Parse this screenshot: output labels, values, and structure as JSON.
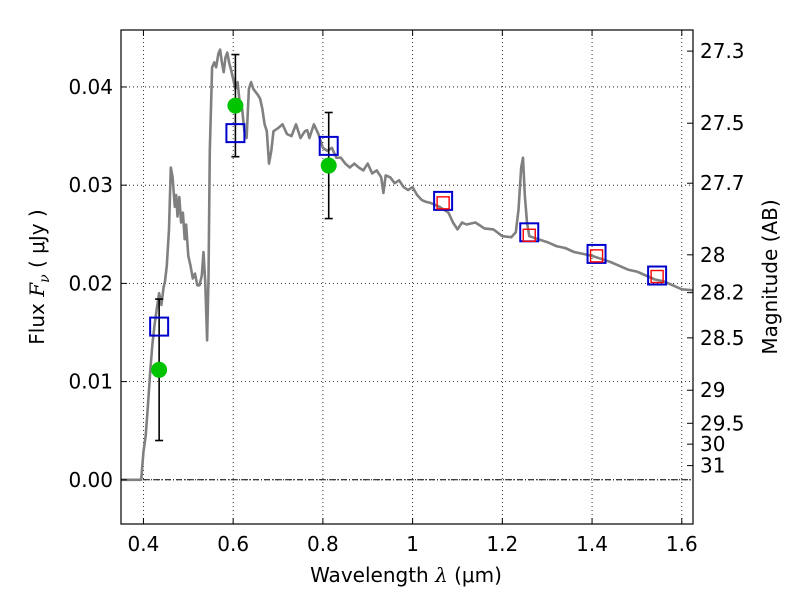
{
  "chart_data": {
    "type": "scatter",
    "xlabel": {
      "prefix": "Wavelength ",
      "symbol": "λ",
      "unit": " (μm)"
    },
    "ylabel": {
      "prefix": "Flux ",
      "symbol": "F",
      "subscript": "ν",
      "unit": " ( μJy )"
    },
    "ylabel_right": "Magnitude (AB)",
    "xlim": [
      0.35,
      1.625
    ],
    "ylim": [
      -0.0045,
      0.0458
    ],
    "xticks": [
      0.4,
      0.6,
      0.8,
      1.0,
      1.2,
      1.4,
      1.6
    ],
    "xtick_labels": [
      "0.4",
      "0.6",
      "0.8",
      "1",
      "1.2",
      "1.4",
      "1.6"
    ],
    "yticks": [
      0.0,
      0.01,
      0.02,
      0.03,
      0.04
    ],
    "ytick_labels": [
      "0.00",
      "0.01",
      "0.02",
      "0.03",
      "0.04"
    ],
    "right_ticks": [
      {
        "label": "27.3",
        "mag": 27.3
      },
      {
        "label": "27.5",
        "mag": 27.5
      },
      {
        "label": "27.7",
        "mag": 27.7
      },
      {
        "label": "28",
        "mag": 28.0
      },
      {
        "label": "28.2",
        "mag": 28.2
      },
      {
        "label": "28.5",
        "mag": 28.5
      },
      {
        "label": "29",
        "mag": 29.0
      },
      {
        "label": "29.5",
        "mag": 29.5
      },
      {
        "label": "30",
        "mag": 30.0
      },
      {
        "label": "31",
        "mag": 31.0
      }
    ],
    "grid": true,
    "zero_line": true,
    "colors": {
      "sed": "#808080",
      "observed": "#00c400",
      "model_box": "#0000cc",
      "red_box": "#ff0000",
      "errorbar": "#000000"
    },
    "series": [
      {
        "kind": "line",
        "points": [
          [
            0.35,
            0.0
          ],
          [
            0.395,
            0.0
          ],
          [
            0.4,
            0.0028
          ],
          [
            0.405,
            0.0045
          ],
          [
            0.41,
            0.0075
          ],
          [
            0.415,
            0.011
          ],
          [
            0.42,
            0.0138
          ],
          [
            0.425,
            0.0158
          ],
          [
            0.43,
            0.0175
          ],
          [
            0.435,
            0.019
          ],
          [
            0.44,
            0.0178
          ],
          [
            0.445,
            0.0196
          ],
          [
            0.448,
            0.0202
          ],
          [
            0.452,
            0.0218
          ],
          [
            0.457,
            0.0255
          ],
          [
            0.461,
            0.0318
          ],
          [
            0.465,
            0.0308
          ],
          [
            0.47,
            0.0278
          ],
          [
            0.473,
            0.029
          ],
          [
            0.476,
            0.0268
          ],
          [
            0.48,
            0.0288
          ],
          [
            0.484,
            0.0262
          ],
          [
            0.488,
            0.0272
          ],
          [
            0.492,
            0.0245
          ],
          [
            0.495,
            0.026
          ],
          [
            0.5,
            0.0228
          ],
          [
            0.505,
            0.0218
          ],
          [
            0.51,
            0.0205
          ],
          [
            0.515,
            0.021
          ],
          [
            0.52,
            0.0198
          ],
          [
            0.525,
            0.0198
          ],
          [
            0.53,
            0.0208
          ],
          [
            0.534,
            0.0232
          ],
          [
            0.538,
            0.02
          ],
          [
            0.542,
            0.0142
          ],
          [
            0.545,
            0.0205
          ],
          [
            0.548,
            0.0335
          ],
          [
            0.553,
            0.042
          ],
          [
            0.558,
            0.0425
          ],
          [
            0.562,
            0.042
          ],
          [
            0.567,
            0.0434
          ],
          [
            0.571,
            0.0438
          ],
          [
            0.575,
            0.0425
          ],
          [
            0.579,
            0.0415
          ],
          [
            0.583,
            0.043
          ],
          [
            0.587,
            0.0435
          ],
          [
            0.591,
            0.0425
          ],
          [
            0.595,
            0.0418
          ],
          [
            0.6,
            0.0408
          ],
          [
            0.605,
            0.0398
          ],
          [
            0.61,
            0.0405
          ],
          [
            0.615,
            0.0382
          ],
          [
            0.62,
            0.0378
          ],
          [
            0.625,
            0.0355
          ],
          [
            0.63,
            0.0348
          ],
          [
            0.635,
            0.0398
          ],
          [
            0.64,
            0.0405
          ],
          [
            0.645,
            0.0398
          ],
          [
            0.65,
            0.0395
          ],
          [
            0.655,
            0.0392
          ],
          [
            0.66,
            0.0388
          ],
          [
            0.665,
            0.0378
          ],
          [
            0.67,
            0.0362
          ],
          [
            0.675,
            0.0355
          ],
          [
            0.68,
            0.0322
          ],
          [
            0.685,
            0.0335
          ],
          [
            0.69,
            0.0355
          ],
          [
            0.7,
            0.0358
          ],
          [
            0.71,
            0.0362
          ],
          [
            0.72,
            0.0352
          ],
          [
            0.73,
            0.035
          ],
          [
            0.74,
            0.0362
          ],
          [
            0.75,
            0.0348
          ],
          [
            0.76,
            0.0355
          ],
          [
            0.765,
            0.0356
          ],
          [
            0.77,
            0.0348
          ],
          [
            0.78,
            0.0362
          ],
          [
            0.79,
            0.0352
          ],
          [
            0.8,
            0.0338
          ],
          [
            0.81,
            0.0335
          ],
          [
            0.82,
            0.0338
          ],
          [
            0.83,
            0.0328
          ],
          [
            0.84,
            0.0328
          ],
          [
            0.85,
            0.0322
          ],
          [
            0.86,
            0.0318
          ],
          [
            0.87,
            0.0322
          ],
          [
            0.88,
            0.0318
          ],
          [
            0.89,
            0.0315
          ],
          [
            0.9,
            0.0322
          ],
          [
            0.91,
            0.0312
          ],
          [
            0.92,
            0.0315
          ],
          [
            0.93,
            0.0308
          ],
          [
            0.935,
            0.0292
          ],
          [
            0.94,
            0.031
          ],
          [
            0.95,
            0.0308
          ],
          [
            0.96,
            0.0302
          ],
          [
            0.97,
            0.0305
          ],
          [
            0.98,
            0.0298
          ],
          [
            0.99,
            0.0295
          ],
          [
            1.0,
            0.0298
          ],
          [
            1.01,
            0.029
          ],
          [
            1.02,
            0.0285
          ],
          [
            1.03,
            0.0283
          ],
          [
            1.04,
            0.0282
          ],
          [
            1.06,
            0.0278
          ],
          [
            1.08,
            0.0272
          ],
          [
            1.09,
            0.0262
          ],
          [
            1.1,
            0.0255
          ],
          [
            1.11,
            0.0262
          ],
          [
            1.12,
            0.026
          ],
          [
            1.14,
            0.0262
          ],
          [
            1.16,
            0.0256
          ],
          [
            1.18,
            0.0255
          ],
          [
            1.2,
            0.0248
          ],
          [
            1.22,
            0.0247
          ],
          [
            1.23,
            0.0252
          ],
          [
            1.236,
            0.0275
          ],
          [
            1.242,
            0.0318
          ],
          [
            1.246,
            0.0328
          ],
          [
            1.25,
            0.029
          ],
          [
            1.255,
            0.0262
          ],
          [
            1.26,
            0.0248
          ],
          [
            1.28,
            0.0245
          ],
          [
            1.3,
            0.0242
          ],
          [
            1.32,
            0.0238
          ],
          [
            1.34,
            0.0236
          ],
          [
            1.36,
            0.0232
          ],
          [
            1.38,
            0.023
          ],
          [
            1.4,
            0.0228
          ],
          [
            1.42,
            0.0225
          ],
          [
            1.44,
            0.0222
          ],
          [
            1.46,
            0.0218
          ],
          [
            1.48,
            0.0214
          ],
          [
            1.5,
            0.0212
          ],
          [
            1.52,
            0.0208
          ],
          [
            1.54,
            0.0204
          ],
          [
            1.56,
            0.0202
          ],
          [
            1.58,
            0.0198
          ],
          [
            1.6,
            0.0194
          ],
          [
            1.625,
            0.0193
          ]
        ]
      },
      {
        "kind": "markers",
        "marker": "circle",
        "points": [
          {
            "x": 0.435,
            "y": 0.0112,
            "err": 0.0072
          },
          {
            "x": 0.605,
            "y": 0.0381,
            "err": 0.0052
          },
          {
            "x": 0.813,
            "y": 0.032,
            "err": 0.0054
          }
        ]
      },
      {
        "kind": "markers",
        "marker": "square",
        "points": [
          {
            "x": 0.435,
            "y": 0.0156
          },
          {
            "x": 0.605,
            "y": 0.0353
          },
          {
            "x": 0.813,
            "y": 0.034
          },
          {
            "x": 1.068,
            "y": 0.0284
          },
          {
            "x": 1.26,
            "y": 0.0252
          },
          {
            "x": 1.41,
            "y": 0.023
          },
          {
            "x": 1.545,
            "y": 0.0208
          }
        ]
      },
      {
        "kind": "markers",
        "marker": "square",
        "points": [
          {
            "x": 1.068,
            "y": 0.0282
          },
          {
            "x": 1.26,
            "y": 0.0249
          },
          {
            "x": 1.41,
            "y": 0.0228
          },
          {
            "x": 1.545,
            "y": 0.0207
          }
        ]
      }
    ]
  }
}
